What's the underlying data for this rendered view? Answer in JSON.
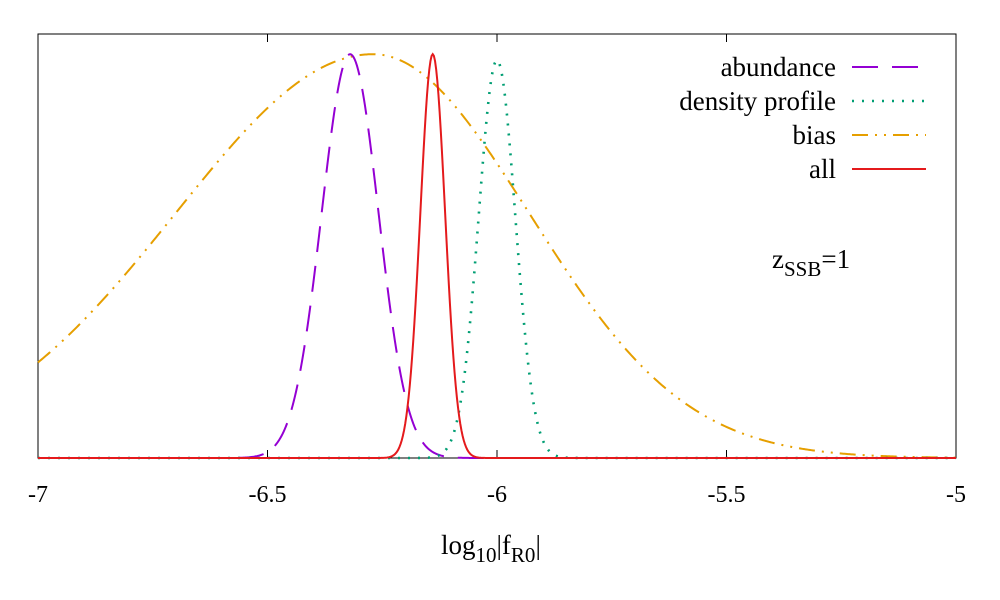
{
  "chart_data": {
    "type": "line",
    "title": "",
    "xlabel": {
      "main": "log",
      "sub1": "10",
      "mid": "|f",
      "sub2": "R0",
      "end": "|"
    },
    "ylabel": "",
    "xlim": [
      -7,
      -5
    ],
    "ylim": [
      0,
      1.05
    ],
    "xticks": [
      -7,
      -6.5,
      -6,
      -5.5,
      -5
    ],
    "xtick_labels": [
      "-7",
      "-6.5",
      "-6",
      "-5.5",
      "-5"
    ],
    "annotation": {
      "main": "z",
      "sub": "SSB",
      "rest": "=1"
    },
    "legend_position": "top-right",
    "series": [
      {
        "name": "abundance",
        "color": "#9400d3",
        "style": "dashed",
        "peak_x": -6.32,
        "sigma": 0.062,
        "peak_y": 1.0
      },
      {
        "name": "density profile",
        "color": "#009e73",
        "style": "dotted",
        "peak_x": -6.0,
        "sigma": 0.04,
        "peak_y": 0.985
      },
      {
        "name": "bias",
        "color": "#e69f00",
        "style": "dash-dot-dot",
        "peak_x": -6.27,
        "sigma_left": 0.43,
        "sigma_right": 0.34,
        "peak_y": 1.0
      },
      {
        "name": "all",
        "color": "#e41a1c",
        "style": "solid",
        "peak_x": -6.14,
        "sigma": 0.027,
        "peak_y": 1.0
      }
    ]
  }
}
